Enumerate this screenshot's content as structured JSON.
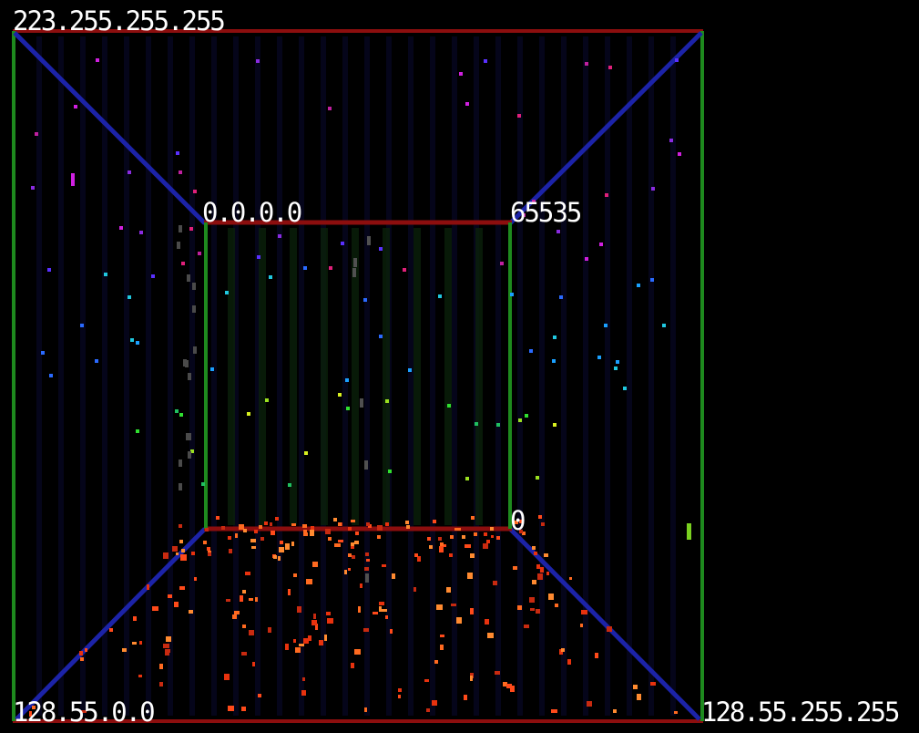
{
  "labels": {
    "outer_top_left": "223.255.255.255",
    "inner_top_left": "0.0.0.0",
    "inner_top_right": "65535",
    "inner_bottom_right": "0",
    "outer_bottom_left": "128.55.0.0",
    "outer_bottom_right": "128.55.255.255"
  },
  "colors": {
    "background": "#000000",
    "vertical_edges": "#1e8a1e",
    "horizontal_edges": "#8c0e0e",
    "diagonal_edges": "#1c23a8",
    "grid_shading": "#0a0a30",
    "label_text": "#ffffff"
  }
}
